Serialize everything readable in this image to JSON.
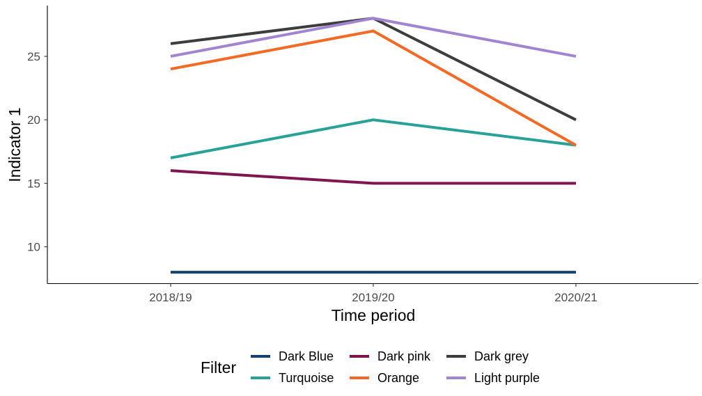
{
  "chart_data": {
    "type": "line",
    "title": "",
    "xlabel": "Time period",
    "ylabel": "Indicator 1",
    "categories": [
      "2018/19",
      "2019/20",
      "2020/21"
    ],
    "yticks": [
      10,
      15,
      20,
      25
    ],
    "ylim": [
      7.1,
      29.0
    ],
    "grid": false,
    "legend": {
      "title": "Filter",
      "position": "bottom",
      "ncol": 3
    },
    "series": [
      {
        "name": "Dark Blue",
        "color": "#12436d",
        "values": [
          8,
          8,
          8
        ]
      },
      {
        "name": "Turquoise",
        "color": "#28a197",
        "values": [
          17,
          20,
          18
        ]
      },
      {
        "name": "Dark pink",
        "color": "#801650",
        "values": [
          16,
          15,
          15
        ]
      },
      {
        "name": "Orange",
        "color": "#f46a25",
        "values": [
          24,
          27,
          18
        ]
      },
      {
        "name": "Dark grey",
        "color": "#3d3d3d",
        "values": [
          26,
          28,
          20
        ]
      },
      {
        "name": "Light purple",
        "color": "#a285d1",
        "values": [
          25,
          28,
          25
        ]
      }
    ]
  }
}
